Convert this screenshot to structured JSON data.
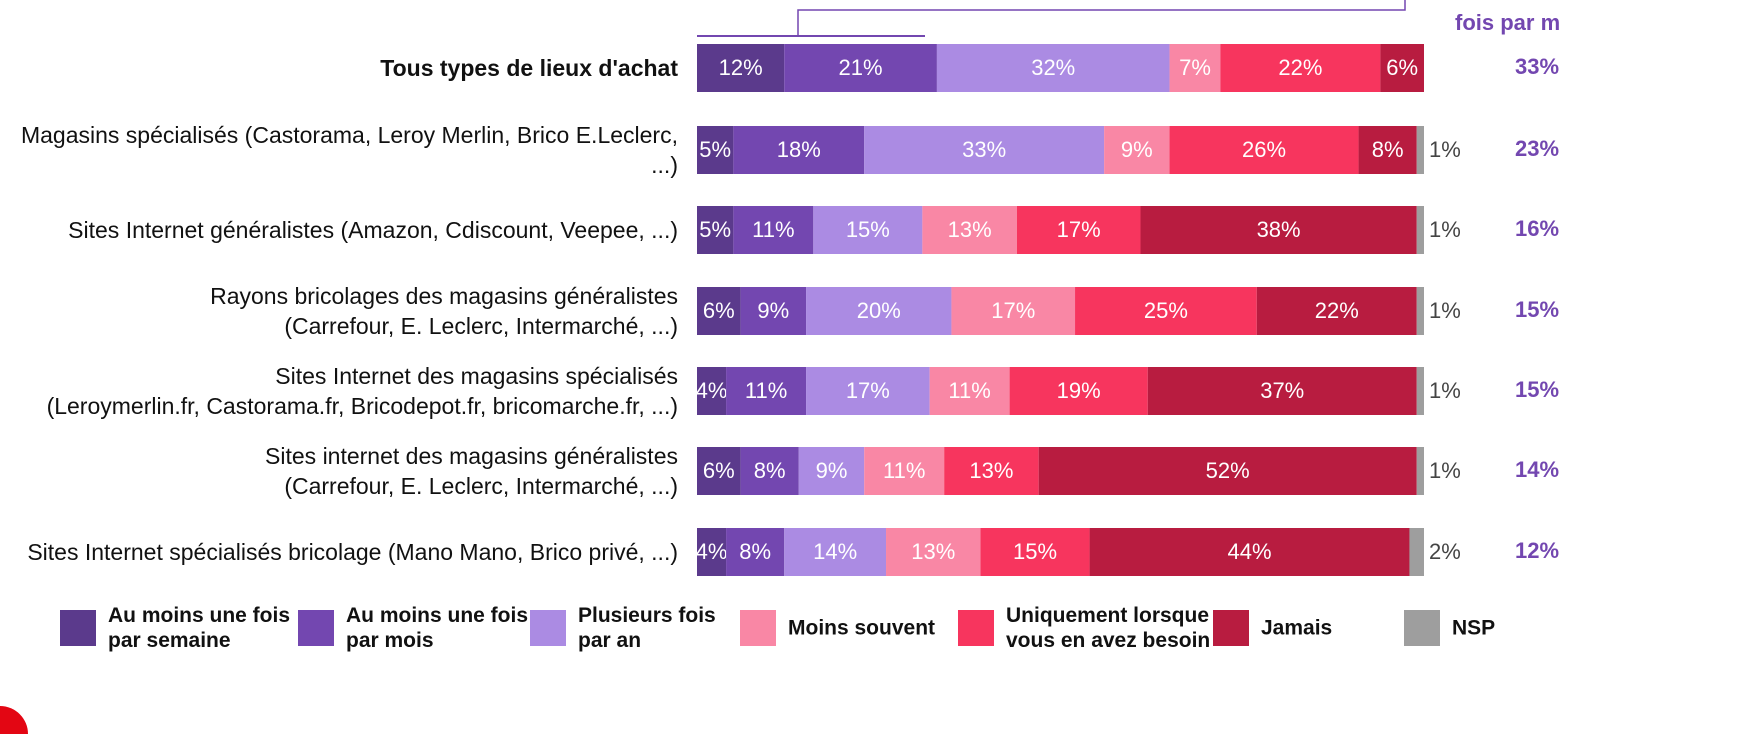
{
  "chart_data": {
    "type": "bar",
    "orientation": "horizontal",
    "stacked": true,
    "categories": [
      "Tous types de lieux d'achat",
      "Magasins spécialisés (Castorama, Leroy Merlin, Brico E.Leclerc, ...)",
      "Sites Internet généralistes (Amazon, Cdiscount, Veepee, ...)",
      "Rayons bricolages des magasins généralistes\n(Carrefour, E. Leclerc, Intermarché, ...)",
      "Sites Internet des magasins spécialisés\n(Leroymerlin.fr, Castorama.fr, Bricodepot.fr, bricomarche.fr, ...)",
      "Sites internet des magasins généralistes\n(Carrefour, E. Leclerc, Intermarché, ...)",
      "Sites Internet spécialisés bricolage (Mano Mano, Brico privé, ...)"
    ],
    "bold_categories": [
      0
    ],
    "xlim": [
      0,
      100
    ],
    "series": [
      {
        "name": "Au moins une fois\npar semaine",
        "color": "#5b3a8c",
        "values": [
          12,
          5,
          5,
          6,
          4,
          6,
          4
        ],
        "value_labels": [
          "12%",
          "5%",
          "5%",
          "6%",
          "4%",
          "6%",
          "4%"
        ]
      },
      {
        "name": "Au moins une fois\npar mois",
        "color": "#7347b0",
        "values": [
          21,
          18,
          11,
          9,
          11,
          8,
          8
        ],
        "value_labels": [
          "21%",
          "18%",
          "11%",
          "9%",
          "11%",
          "8%",
          "8%"
        ]
      },
      {
        "name": "Plusieurs fois\npar an",
        "color": "#ab8be3",
        "values": [
          32,
          33,
          15,
          20,
          17,
          9,
          14
        ],
        "value_labels": [
          "32%",
          "33%",
          "15%",
          "20%",
          "17%",
          "9%",
          "14%"
        ]
      },
      {
        "name": "Moins souvent",
        "color": "#f987a5",
        "values": [
          7,
          9,
          13,
          17,
          11,
          11,
          13
        ],
        "value_labels": [
          "7%",
          "9%",
          "13%",
          "17%",
          "11%",
          "11%",
          "13%"
        ]
      },
      {
        "name": "Uniquement lorsque\nvous en avez besoin",
        "color": "#f7355e",
        "values": [
          22,
          26,
          17,
          25,
          19,
          13,
          15
        ],
        "value_labels": [
          "22%",
          "26%",
          "17%",
          "25%",
          "19%",
          "13%",
          "15%"
        ]
      },
      {
        "name": "Jamais",
        "color": "#b81c40",
        "values": [
          6,
          8,
          38,
          22,
          37,
          52,
          44
        ],
        "value_labels": [
          "6%",
          "8%",
          "38%",
          "22%",
          "37%",
          "52%",
          "44%"
        ]
      },
      {
        "name": "NSP",
        "color": "#9e9e9e",
        "values": [
          null,
          1,
          1,
          1,
          1,
          1,
          2
        ],
        "value_labels": [
          null,
          "1%",
          "1%",
          "1%",
          "1%",
          "1%",
          "2%"
        ]
      }
    ],
    "annotation": {
      "header": "fois par m",
      "color": "#7347b0",
      "values": [
        33,
        23,
        16,
        15,
        15,
        14,
        12
      ],
      "value_labels": [
        "33%",
        "23%",
        "16%",
        "15%",
        "15%",
        "14%",
        "12%"
      ]
    }
  }
}
